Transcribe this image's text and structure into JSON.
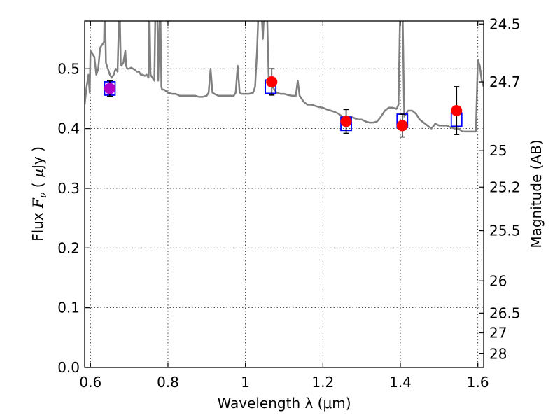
{
  "chart_data": {
    "type": "scatter",
    "title": "",
    "xlabel": "Wavelength  λ (μm)",
    "ylabel": "Flux  F_ν  ( μJy )",
    "ylabel_right": "Magnitude (AB)",
    "xlim": [
      0.585,
      1.615
    ],
    "ylim": [
      0.0,
      0.58
    ],
    "grid": true,
    "x_ticks": [
      {
        "value": 0.6,
        "label": "0.6"
      },
      {
        "value": 0.8,
        "label": "0.8"
      },
      {
        "value": 1.0,
        "label": "1"
      },
      {
        "value": 1.2,
        "label": "1.2"
      },
      {
        "value": 1.4,
        "label": "1.4"
      },
      {
        "value": 1.6,
        "label": "1.6"
      }
    ],
    "y_ticks": [
      {
        "value": 0.0,
        "label": "0.0"
      },
      {
        "value": 0.1,
        "label": "0.1"
      },
      {
        "value": 0.2,
        "label": "0.2"
      },
      {
        "value": 0.3,
        "label": "0.3"
      },
      {
        "value": 0.4,
        "label": "0.4"
      },
      {
        "value": 0.5,
        "label": "0.5"
      }
    ],
    "y_right_ticks": [
      {
        "label": "24.5",
        "flux": 0.575
      },
      {
        "label": "24.7",
        "flux": 0.478
      },
      {
        "label": "25",
        "flux": 0.363
      },
      {
        "label": "25.2",
        "flux": 0.302
      },
      {
        "label": "25.5",
        "flux": 0.229
      },
      {
        "label": "26",
        "flux": 0.145
      },
      {
        "label": "26.5",
        "flux": 0.091
      },
      {
        "label": "27",
        "flux": 0.058
      },
      {
        "label": "28",
        "flux": 0.023
      }
    ],
    "series": [
      {
        "kind": "line",
        "color": "#808080",
        "points": [
          [
            0.585,
            0.44
          ],
          [
            0.59,
            0.47
          ],
          [
            0.595,
            0.49
          ],
          [
            0.598,
            0.46
          ],
          [
            0.6,
            0.53
          ],
          [
            0.605,
            0.525
          ],
          [
            0.61,
            0.52
          ],
          [
            0.615,
            0.49
          ],
          [
            0.62,
            0.5
          ],
          [
            0.625,
            0.535
          ],
          [
            0.63,
            0.54
          ],
          [
            0.635,
            0.545
          ],
          [
            0.637,
            0.62
          ],
          [
            0.64,
            0.51
          ],
          [
            0.645,
            0.5
          ],
          [
            0.65,
            0.49
          ],
          [
            0.655,
            0.485
          ],
          [
            0.66,
            0.49
          ],
          [
            0.665,
            0.5
          ],
          [
            0.67,
            0.495
          ],
          [
            0.675,
            0.62
          ],
          [
            0.678,
            0.51
          ],
          [
            0.68,
            0.505
          ],
          [
            0.685,
            0.51
          ],
          [
            0.69,
            0.53
          ],
          [
            0.692,
            0.505
          ],
          [
            0.695,
            0.5
          ],
          [
            0.7,
            0.5
          ],
          [
            0.705,
            0.502
          ],
          [
            0.71,
            0.5
          ],
          [
            0.715,
            0.498
          ],
          [
            0.72,
            0.495
          ],
          [
            0.725,
            0.495
          ],
          [
            0.73,
            0.49
          ],
          [
            0.735,
            0.49
          ],
          [
            0.74,
            0.488
          ],
          [
            0.745,
            0.49
          ],
          [
            0.75,
            0.485
          ],
          [
            0.752,
            0.62
          ],
          [
            0.755,
            0.49
          ],
          [
            0.76,
            0.485
          ],
          [
            0.765,
            0.48
          ],
          [
            0.768,
            0.62
          ],
          [
            0.772,
            0.62
          ],
          [
            0.775,
            0.48
          ],
          [
            0.78,
            0.62
          ],
          [
            0.783,
            0.47
          ],
          [
            0.785,
            0.465
          ],
          [
            0.79,
            0.465
          ],
          [
            0.8,
            0.46
          ],
          [
            0.81,
            0.458
          ],
          [
            0.82,
            0.458
          ],
          [
            0.83,
            0.455
          ],
          [
            0.84,
            0.455
          ],
          [
            0.85,
            0.455
          ],
          [
            0.86,
            0.455
          ],
          [
            0.87,
            0.455
          ],
          [
            0.88,
            0.453
          ],
          [
            0.89,
            0.453
          ],
          [
            0.9,
            0.455
          ],
          [
            0.905,
            0.46
          ],
          [
            0.91,
            0.5
          ],
          [
            0.915,
            0.46
          ],
          [
            0.92,
            0.458
          ],
          [
            0.93,
            0.455
          ],
          [
            0.94,
            0.455
          ],
          [
            0.95,
            0.455
          ],
          [
            0.96,
            0.455
          ],
          [
            0.97,
            0.455
          ],
          [
            0.975,
            0.46
          ],
          [
            0.98,
            0.505
          ],
          [
            0.985,
            0.46
          ],
          [
            0.99,
            0.458
          ],
          [
            1.0,
            0.458
          ],
          [
            1.01,
            0.458
          ],
          [
            1.02,
            0.46
          ],
          [
            1.025,
            0.47
          ],
          [
            1.03,
            0.53
          ],
          [
            1.035,
            0.62
          ],
          [
            1.04,
            0.62
          ],
          [
            1.045,
            0.55
          ],
          [
            1.05,
            0.62
          ],
          [
            1.055,
            0.62
          ],
          [
            1.06,
            0.485
          ],
          [
            1.065,
            0.475
          ],
          [
            1.07,
            0.47
          ],
          [
            1.075,
            0.465
          ],
          [
            1.08,
            0.46
          ],
          [
            1.09,
            0.458
          ],
          [
            1.1,
            0.458
          ],
          [
            1.11,
            0.456
          ],
          [
            1.12,
            0.455
          ],
          [
            1.13,
            0.455
          ],
          [
            1.135,
            0.48
          ],
          [
            1.14,
            0.455
          ],
          [
            1.15,
            0.445
          ],
          [
            1.16,
            0.44
          ],
          [
            1.17,
            0.44
          ],
          [
            1.18,
            0.438
          ],
          [
            1.19,
            0.436
          ],
          [
            1.2,
            0.435
          ],
          [
            1.21,
            0.432
          ],
          [
            1.22,
            0.43
          ],
          [
            1.23,
            0.428
          ],
          [
            1.24,
            0.425
          ],
          [
            1.25,
            0.42
          ],
          [
            1.26,
            0.42
          ],
          [
            1.27,
            0.42
          ],
          [
            1.28,
            0.418
          ],
          [
            1.29,
            0.415
          ],
          [
            1.3,
            0.415
          ],
          [
            1.31,
            0.412
          ],
          [
            1.32,
            0.41
          ],
          [
            1.33,
            0.41
          ],
          [
            1.34,
            0.412
          ],
          [
            1.35,
            0.42
          ],
          [
            1.36,
            0.43
          ],
          [
            1.37,
            0.435
          ],
          [
            1.38,
            0.435
          ],
          [
            1.39,
            0.433
          ],
          [
            1.395,
            0.44
          ],
          [
            1.4,
            0.62
          ],
          [
            1.405,
            0.62
          ],
          [
            1.41,
            0.42
          ],
          [
            1.42,
            0.43
          ],
          [
            1.43,
            0.43
          ],
          [
            1.44,
            0.425
          ],
          [
            1.45,
            0.415
          ],
          [
            1.46,
            0.41
          ],
          [
            1.47,
            0.405
          ],
          [
            1.48,
            0.4
          ],
          [
            1.49,
            0.408
          ],
          [
            1.5,
            0.405
          ],
          [
            1.51,
            0.405
          ],
          [
            1.52,
            0.405
          ],
          [
            1.53,
            0.402
          ],
          [
            1.54,
            0.4
          ],
          [
            1.55,
            0.4
          ],
          [
            1.56,
            0.395
          ],
          [
            1.57,
            0.395
          ],
          [
            1.58,
            0.395
          ],
          [
            1.59,
            0.395
          ],
          [
            1.595,
            0.395
          ],
          [
            1.6,
            0.515
          ],
          [
            1.605,
            0.505
          ],
          [
            1.61,
            0.48
          ],
          [
            1.615,
            0.47
          ]
        ]
      },
      {
        "kind": "model-box",
        "color": "#0000ff",
        "points": [
          [
            0.65,
            0.467
          ],
          [
            1.065,
            0.47
          ],
          [
            1.26,
            0.408
          ],
          [
            1.405,
            0.413
          ],
          [
            1.545,
            0.415
          ]
        ]
      },
      {
        "kind": "observed",
        "color": "#ff0000",
        "points": [
          {
            "x": 0.65,
            "y": 0.467,
            "err": 0.013
          },
          {
            "x": 1.068,
            "y": 0.478,
            "err": 0.022
          },
          {
            "x": 1.26,
            "y": 0.412,
            "err": 0.02
          },
          {
            "x": 1.405,
            "y": 0.405,
            "err": 0.019
          },
          {
            "x": 1.545,
            "y": 0.43,
            "err": 0.04
          }
        ]
      }
    ]
  }
}
